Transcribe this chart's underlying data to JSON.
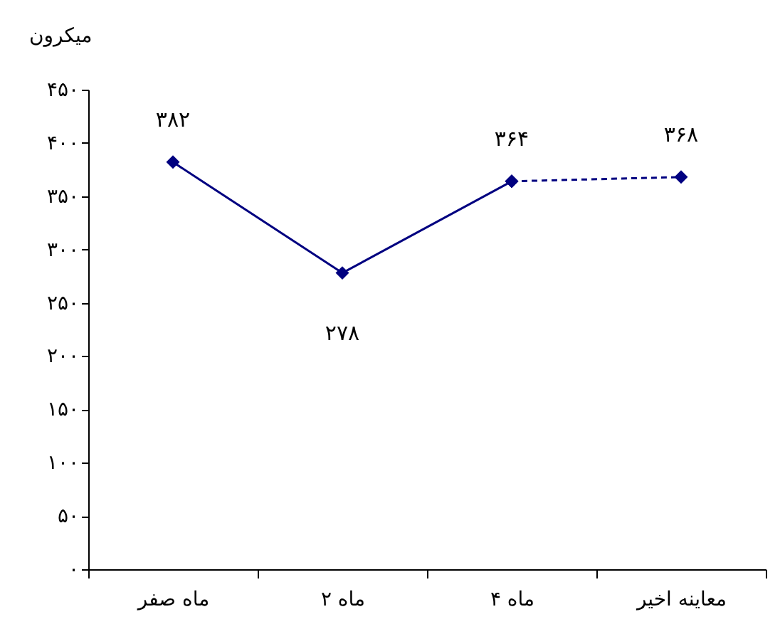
{
  "chart_data": {
    "type": "line",
    "ylabel": "میکرون",
    "categories": [
      "ماه صفر",
      "ماه ۲",
      "ماه ۴",
      "معاینه اخیر"
    ],
    "series": [
      {
        "color": "#000080",
        "line_style": "solid",
        "values": [
          382,
          278,
          364,
          null
        ],
        "value_labels": [
          "۳۸۲",
          "۲۷۸",
          "۳۶۴",
          null
        ]
      },
      {
        "color": "#000080",
        "line_style": "dashed",
        "values": [
          null,
          null,
          364,
          368
        ],
        "value_labels": [
          null,
          null,
          null,
          "۳۶۸"
        ]
      }
    ],
    "ylim": [
      0,
      450
    ],
    "yticks": [
      {
        "value": 0,
        "label": "۰"
      },
      {
        "value": 50,
        "label": "۵۰"
      },
      {
        "value": 100,
        "label": "۱۰۰"
      },
      {
        "value": 150,
        "label": "۱۵۰"
      },
      {
        "value": 200,
        "label": "۲۰۰"
      },
      {
        "value": 250,
        "label": "۲۵۰"
      },
      {
        "value": 300,
        "label": "۳۰۰"
      },
      {
        "value": 350,
        "label": "۳۵۰"
      },
      {
        "value": 400,
        "label": "۴۰۰"
      },
      {
        "value": 450,
        "label": "۴۵۰"
      }
    ],
    "marker": "diamond",
    "grid": false
  }
}
